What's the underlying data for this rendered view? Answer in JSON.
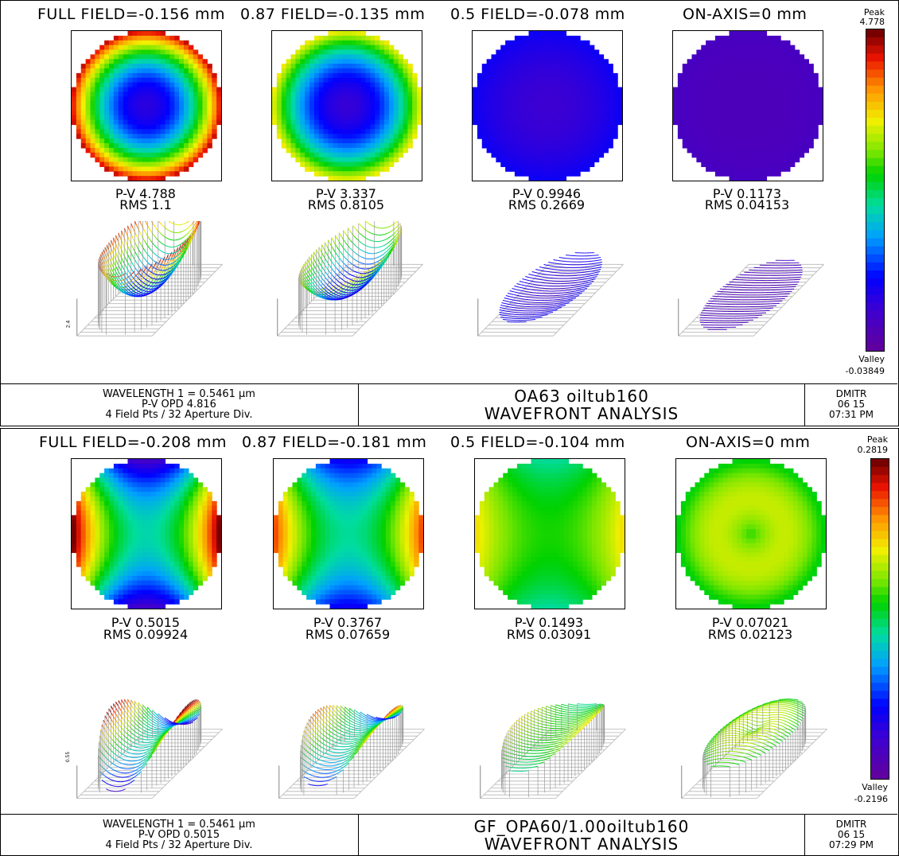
{
  "chart_data": [
    {
      "type": "heatmap",
      "title": "WAVEFRONT ANALYSIS",
      "colorbar": {
        "peak_label": "Peak",
        "peak": "4.778",
        "valley_label": "Valley",
        "valley": "-0.03849"
      },
      "fields": [
        {
          "title": "FULL FIELD=-0.156 mm",
          "pv": "P-V 4.788",
          "rms": "RMS 1.1",
          "pattern": "defocus",
          "center": 0.15,
          "edge": 0.95
        },
        {
          "title": "0.87 FIELD=-0.135 mm",
          "pv": "P-V 3.337",
          "rms": "RMS 0.8105",
          "pattern": "defocus",
          "center": 0.13,
          "edge": 0.73
        },
        {
          "title": "0.5 FIELD=-0.078 mm",
          "pv": "P-V 0.9946",
          "rms": "RMS 0.2669",
          "pattern": "defocus",
          "center": 0.12,
          "edge": 0.2
        },
        {
          "title": "ON-AXIS=0 mm",
          "pv": "P-V 0.1173",
          "rms": "RMS 0.04153",
          "pattern": "defocus",
          "center": 0.06,
          "edge": 0.08
        }
      ],
      "scale_label": "2.4",
      "footer": {
        "wavelength": "WAVELENGTH 1 = 0.5461 µm",
        "pv_opd": "P-V OPD 4.816",
        "field_info": "4 Field Pts / 32 Aperture Div.",
        "lens": "OA63 oiltub160",
        "analysis": "WAVEFRONT ANALYSIS",
        "user": "DMITR",
        "date": "06 15",
        "time": "07:31 PM"
      }
    },
    {
      "type": "heatmap",
      "title": "WAVEFRONT ANALYSIS",
      "colorbar": {
        "peak_label": "Peak",
        "peak": "0.2819",
        "valley_label": "Valley",
        "valley": "-0.2196"
      },
      "fields": [
        {
          "title": "FULL FIELD=-0.208 mm",
          "pv": "P-V 0.5015",
          "rms": "RMS 0.09924",
          "pattern": "astig",
          "amp": 0.48,
          "base": 0.5
        },
        {
          "title": "0.87 FIELD=-0.181 mm",
          "pv": "P-V 0.3767",
          "rms": "RMS 0.07659",
          "pattern": "astig",
          "amp": 0.36,
          "base": 0.5
        },
        {
          "title": "0.5 FIELD=-0.104 mm",
          "pv": "P-V 0.1493",
          "rms": "RMS 0.03091",
          "pattern": "astig",
          "amp": 0.15,
          "base": 0.58
        },
        {
          "title": "ON-AXIS=0 mm",
          "pv": "P-V 0.07021",
          "rms": "RMS 0.02123",
          "pattern": "ring",
          "amp": 0.07,
          "base": 0.6
        }
      ],
      "scale_label": "0.55",
      "footer": {
        "wavelength": "WAVELENGTH 1 = 0.5461 µm",
        "pv_opd": "P-V OPD 0.5015",
        "field_info": "4 Field Pts / 32 Aperture Div.",
        "lens": "GF_OPA60/1.00oiltub160",
        "analysis": "WAVEFRONT ANALYSIS",
        "user": "DMITR",
        "date": "06 15",
        "time": "07:29 PM"
      }
    }
  ]
}
